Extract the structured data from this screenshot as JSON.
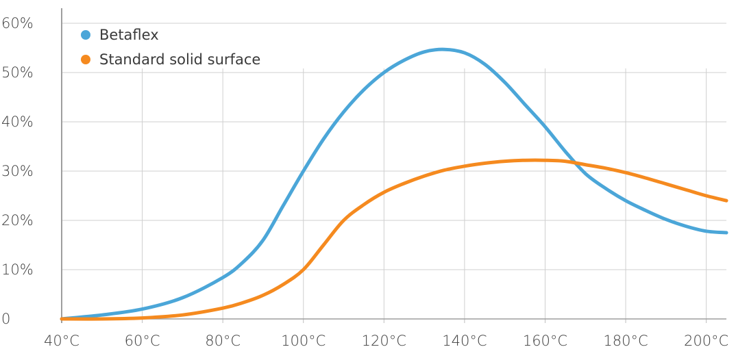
{
  "chart_data": {
    "type": "line",
    "title": "",
    "xlabel": "",
    "ylabel": "",
    "xlim": [
      40,
      205
    ],
    "ylim": [
      0,
      60
    ],
    "x_ticks": [
      40,
      60,
      80,
      100,
      120,
      140,
      160,
      180,
      200
    ],
    "x_tick_labels": [
      "40°C",
      "60°C",
      "80°C",
      "100°C",
      "120°C",
      "140°C",
      "160°C",
      "180°C",
      "200°C"
    ],
    "y_ticks": [
      0,
      10,
      20,
      30,
      40,
      50,
      60
    ],
    "y_tick_labels": [
      "0",
      "10%",
      "20%",
      "30%",
      "40%",
      "50%",
      "60%"
    ],
    "grid": true,
    "legend_position": "top-left",
    "series": [
      {
        "name": "Betaflex",
        "color": "#4ba6d8",
        "points": [
          [
            40,
            0
          ],
          [
            50,
            0.8
          ],
          [
            60,
            2
          ],
          [
            70,
            4.3
          ],
          [
            80,
            8.4
          ],
          [
            85,
            11.5
          ],
          [
            90,
            16
          ],
          [
            95,
            23
          ],
          [
            100,
            30
          ],
          [
            105,
            36.5
          ],
          [
            110,
            42
          ],
          [
            115,
            46.5
          ],
          [
            120,
            50
          ],
          [
            125,
            52.5
          ],
          [
            130,
            54.2
          ],
          [
            135,
            54.7
          ],
          [
            140,
            54
          ],
          [
            145,
            51.7
          ],
          [
            150,
            48
          ],
          [
            155,
            43.5
          ],
          [
            160,
            39
          ],
          [
            165,
            34
          ],
          [
            170,
            29.5
          ],
          [
            175,
            26.5
          ],
          [
            180,
            24
          ],
          [
            185,
            22
          ],
          [
            190,
            20.2
          ],
          [
            195,
            18.8
          ],
          [
            200,
            17.8
          ],
          [
            205,
            17.5
          ]
        ]
      },
      {
        "name": "Standard solid surface",
        "color": "#f58a1f",
        "points": [
          [
            40,
            0
          ],
          [
            50,
            0
          ],
          [
            60,
            0.2
          ],
          [
            70,
            0.8
          ],
          [
            80,
            2.2
          ],
          [
            85,
            3.3
          ],
          [
            90,
            4.8
          ],
          [
            95,
            7
          ],
          [
            100,
            10
          ],
          [
            105,
            15
          ],
          [
            110,
            20
          ],
          [
            115,
            23.2
          ],
          [
            120,
            25.7
          ],
          [
            125,
            27.5
          ],
          [
            130,
            29
          ],
          [
            135,
            30.2
          ],
          [
            140,
            31
          ],
          [
            145,
            31.6
          ],
          [
            150,
            32
          ],
          [
            155,
            32.2
          ],
          [
            160,
            32.2
          ],
          [
            165,
            32
          ],
          [
            170,
            31.3
          ],
          [
            175,
            30.6
          ],
          [
            180,
            29.7
          ],
          [
            185,
            28.6
          ],
          [
            190,
            27.4
          ],
          [
            195,
            26.2
          ],
          [
            200,
            25
          ],
          [
            205,
            24
          ]
        ]
      }
    ]
  }
}
